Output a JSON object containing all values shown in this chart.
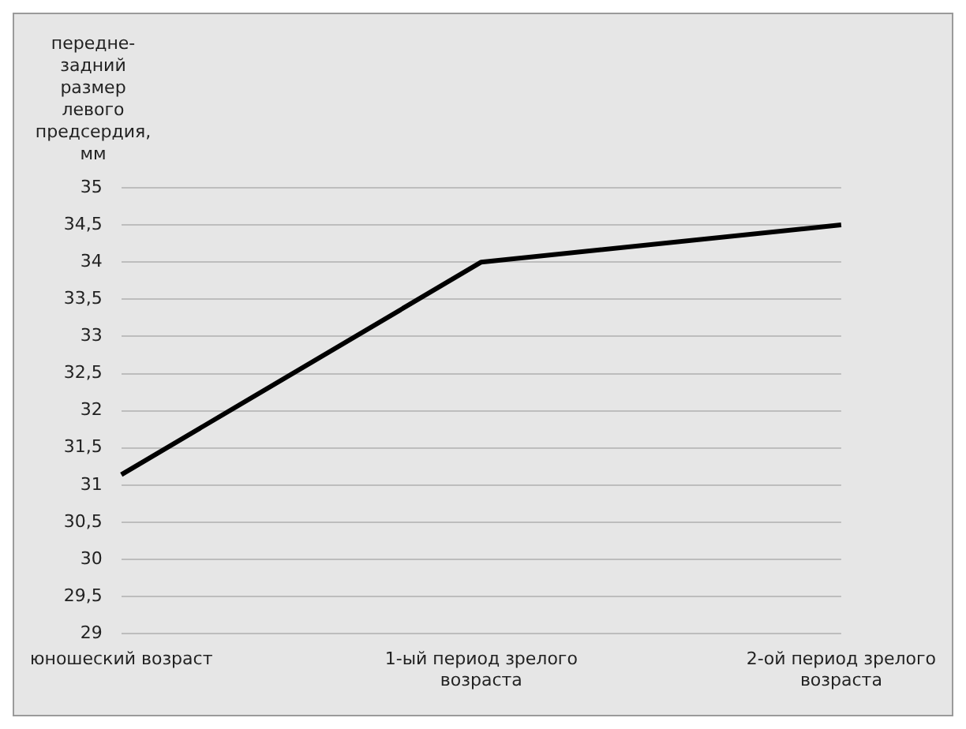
{
  "chart_data": {
    "type": "line",
    "ylabel": "передне-задний размер левого предсердия, мм",
    "categories": [
      "юношеский возраст",
      "1-ый период зрелого возраста",
      "2-ой период зрелого возраста"
    ],
    "series": [
      {
        "color": "#000000",
        "values": [
          31.14,
          34,
          34.5
        ]
      }
    ],
    "ylim": [
      29,
      35
    ],
    "yticks": [
      29,
      {
        "value": 29.5,
        "label": "29,5"
      },
      30,
      {
        "value": 30.5,
        "label": "30,5"
      },
      31,
      {
        "value": 31.5,
        "label": "31,5"
      },
      32,
      {
        "value": 32.5,
        "label": "32,5"
      },
      33,
      {
        "value": 33.5,
        "label": "33,5"
      },
      34,
      {
        "value": 34.5,
        "label": "34,5"
      },
      35
    ],
    "grid": "y",
    "legend": false,
    "marker": "none",
    "line_style": "solid"
  }
}
